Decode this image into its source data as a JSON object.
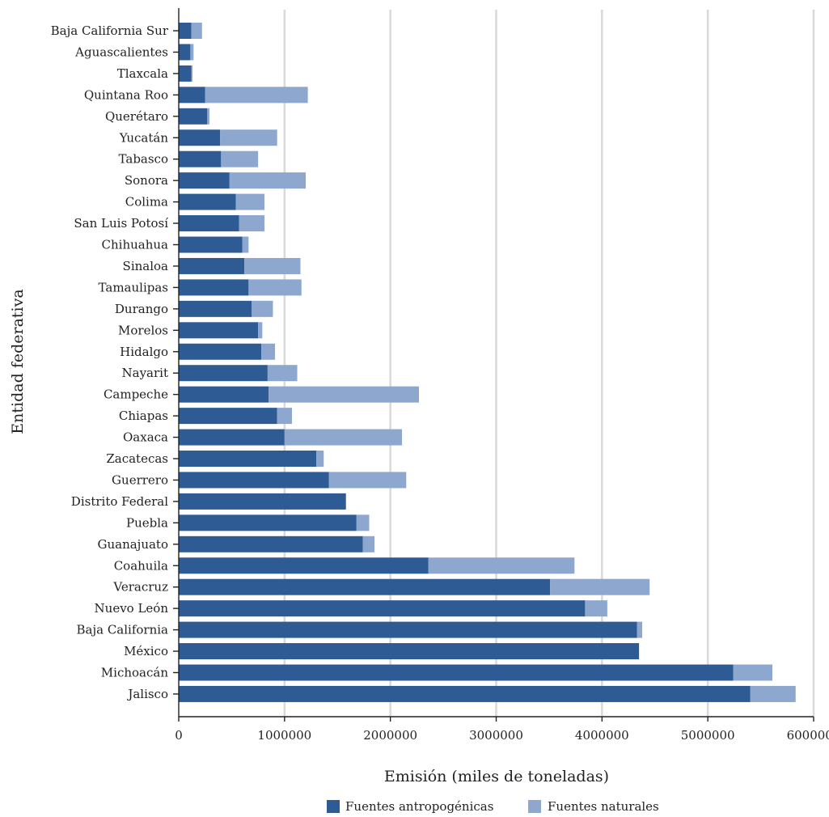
{
  "chart_data": {
    "type": "bar",
    "orientation": "horizontal",
    "stacked": true,
    "xlabel": "Emisión (miles de toneladas)",
    "ylabel": "Entidad federativa",
    "xlim": [
      0,
      6000000
    ],
    "x_ticks": [
      "0",
      "1000000",
      "2000000",
      "3000000",
      "4000000",
      "5000000",
      "6000000"
    ],
    "grid": "vertical",
    "legend_position": "bottom",
    "categories": [
      "Baja California Sur",
      "Aguascalientes",
      "Tlaxcala",
      "Quintana Roo",
      "Querétaro",
      "Yucatán",
      "Tabasco",
      "Sonora",
      "Colima",
      "San Luis Potosí",
      "Chihuahua",
      "Sinaloa",
      "Tamaulipas",
      "Durango",
      "Morelos",
      "Hidalgo",
      "Nayarit",
      "Campeche",
      "Chiapas",
      "Oaxaca",
      "Zacatecas",
      "Guerrero",
      "Distrito Federal",
      "Puebla",
      "Guanajuato",
      "Coahuila",
      "Veracruz",
      "Nuevo León",
      "Baja California",
      "México",
      "Michoacán",
      "Jalisco"
    ],
    "series": [
      {
        "name": "Fuentes antropogénicas",
        "color": "#2e5b93",
        "values": [
          120000,
          110000,
          120000,
          250000,
          270000,
          390000,
          400000,
          480000,
          540000,
          570000,
          600000,
          620000,
          660000,
          690000,
          750000,
          780000,
          840000,
          850000,
          930000,
          1000000,
          1300000,
          1420000,
          1580000,
          1680000,
          1740000,
          2360000,
          3510000,
          3840000,
          4330000,
          4350000,
          5240000,
          5400000
        ]
      },
      {
        "name": "Fuentes naturales",
        "color": "#8ea7cf",
        "values": [
          100000,
          30000,
          10000,
          970000,
          20000,
          540000,
          350000,
          720000,
          270000,
          240000,
          60000,
          530000,
          500000,
          200000,
          40000,
          130000,
          280000,
          1420000,
          140000,
          1110000,
          70000,
          730000,
          0,
          120000,
          110000,
          1380000,
          940000,
          210000,
          50000,
          0,
          370000,
          430000
        ]
      }
    ]
  }
}
